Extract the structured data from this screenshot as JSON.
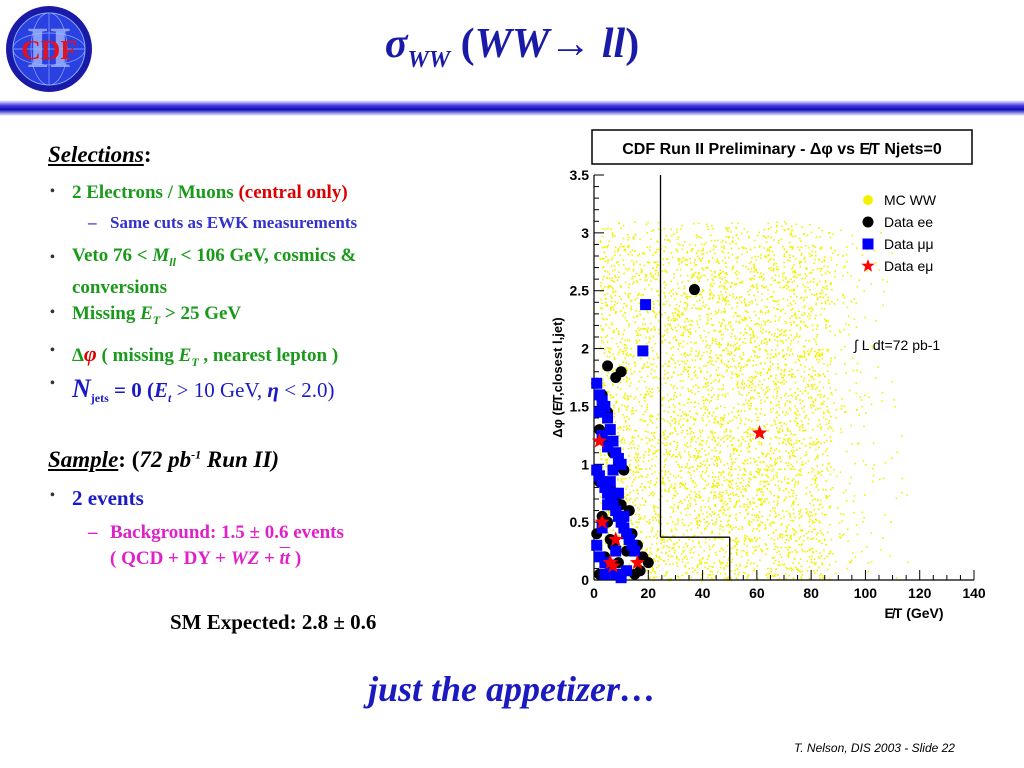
{
  "logo": {
    "text": "CDF",
    "roman": "II"
  },
  "header": {
    "title_sigma": "σ",
    "title_sub": "WW",
    "title_paren_open": " (",
    "title_ww": "WW",
    "title_arrow": "→",
    "title_ll": " ll",
    "title_paren_close": ")"
  },
  "selections": {
    "heading": "Selections",
    "colon": ":",
    "items": [
      {
        "text": "2 Electrons / Muons ",
        "highlight": "(central only)"
      },
      {
        "sub_text": "Same cuts as EWK measurements"
      },
      {
        "text_a": "Veto 76 < ",
        "var": "M",
        "var_sub": "ll",
        "text_b": " < 106 GeV, cosmics &",
        "text_c": "conversions"
      },
      {
        "text_a": "Missing ",
        "var": "E",
        "var_sub": "T",
        "text_b": " > 25 GeV"
      },
      {
        "text_a": "Δ",
        "var": "φ",
        "text_b": " ( missing ",
        "var2": "E",
        "var2_sub": "T",
        "text_c": " , nearest lepton )"
      },
      {
        "var": "N",
        "var_sub": "jets",
        "text_a": " = 0 (",
        "var2": "E",
        "var2_sub": "t",
        "text_b": " > 10 GeV, ",
        "var3": "η",
        "text_c": " < 2.0)"
      }
    ]
  },
  "sample": {
    "heading": "Sample",
    "colon": ": (",
    "lumi": "72 pb",
    "lumi_sup": "-1",
    "run": " Run II)",
    "events": "2 events",
    "background_line1": "Background: 1.5 ± 0.6 events",
    "bg_a": "( QCD + DY + ",
    "bg_wz": "WZ",
    "bg_b": " + ",
    "bg_tt": "tt",
    "bg_c": " )"
  },
  "sm_expected": "SM Expected: 2.8 ± 0.6",
  "tagline": "just the appetizer…",
  "footer": "T. Nelson,  DIS 2003 - Slide 22",
  "chart_data": {
    "type": "scatter",
    "title": "CDF Run II Preliminary - Δφ vs E̸T Njets=0",
    "xlabel": "E̸T (GeV)",
    "ylabel": "Δφ (E̸T,closest l,jet)",
    "xlim": [
      0,
      140
    ],
    "ylim": [
      0,
      3.5
    ],
    "xticks": [
      "0",
      "20",
      "40",
      "60",
      "80",
      "100",
      "120",
      "140"
    ],
    "yticks": [
      "0",
      "0.5",
      "1",
      "1.5",
      "2",
      "2.5",
      "3",
      "3.5"
    ],
    "legend_placement": "top-right",
    "annotation": "∫ L dt=72 pb-1",
    "cut_lines": [
      {
        "x": [
          24.5,
          24.5
        ],
        "y": [
          0.37,
          3.5
        ]
      },
      {
        "x": [
          24.5,
          50
        ],
        "y": [
          0.37,
          0.37
        ]
      },
      {
        "x": [
          50,
          50
        ],
        "y": [
          0.37,
          0
        ]
      }
    ],
    "series": [
      {
        "name": "MC WW",
        "color": "#f2f200",
        "marker": "dot-cloud",
        "regions": [
          {
            "x": [
              0,
              140
            ],
            "y": [
              0,
              3.15
            ],
            "density": "dense near x 20-90, y 0-3"
          }
        ]
      },
      {
        "name": "Data ee",
        "color": "#000000",
        "marker": "circle",
        "x": [
          1,
          3,
          5,
          2,
          4,
          7,
          9,
          11,
          2,
          6,
          8,
          10,
          3,
          5,
          1,
          7,
          12,
          4,
          9,
          6,
          2,
          14,
          16,
          18,
          20,
          15,
          17,
          3,
          8,
          37,
          5,
          10,
          13,
          6,
          11
        ],
        "y": [
          1.7,
          1.6,
          1.45,
          1.3,
          1.2,
          1.1,
          1.0,
          0.95,
          0.85,
          0.8,
          0.7,
          0.65,
          0.55,
          0.5,
          0.4,
          0.3,
          0.25,
          0.2,
          0.15,
          0.1,
          0.05,
          0.4,
          0.3,
          0.2,
          0.15,
          0.05,
          0.08,
          1.55,
          1.75,
          2.51,
          1.85,
          1.8,
          0.6,
          0.35,
          0.45
        ]
      },
      {
        "name": "Data μμ",
        "color": "#0000ff",
        "marker": "square",
        "x": [
          1,
          2,
          3,
          4,
          5,
          6,
          7,
          8,
          9,
          10,
          1,
          2,
          3,
          4,
          5,
          6,
          7,
          8,
          9,
          10,
          11,
          12,
          13,
          14,
          15,
          2,
          4,
          6,
          8,
          10,
          12,
          3,
          5,
          7,
          9,
          11,
          13,
          19,
          18,
          1,
          3,
          5,
          2,
          6,
          4,
          8
        ],
        "y": [
          1.7,
          1.6,
          1.55,
          1.5,
          1.4,
          1.3,
          1.2,
          1.1,
          1.05,
          1.0,
          0.95,
          0.9,
          0.85,
          0.8,
          0.75,
          0.7,
          0.65,
          0.6,
          0.55,
          0.5,
          0.45,
          0.4,
          0.35,
          0.3,
          0.25,
          0.2,
          0.15,
          0.1,
          0.05,
          0.02,
          0.08,
          1.25,
          1.15,
          0.95,
          0.75,
          0.55,
          0.35,
          2.38,
          1.98,
          0.3,
          0.45,
          0.65,
          1.45,
          0.85,
          0.05,
          0.25
        ]
      },
      {
        "name": "Data eμ",
        "color": "#ff0000",
        "marker": "star",
        "x": [
          2,
          3,
          6,
          7,
          8,
          16,
          61
        ],
        "y": [
          1.2,
          0.5,
          0.15,
          0.12,
          0.35,
          0.15,
          1.27
        ]
      }
    ]
  }
}
